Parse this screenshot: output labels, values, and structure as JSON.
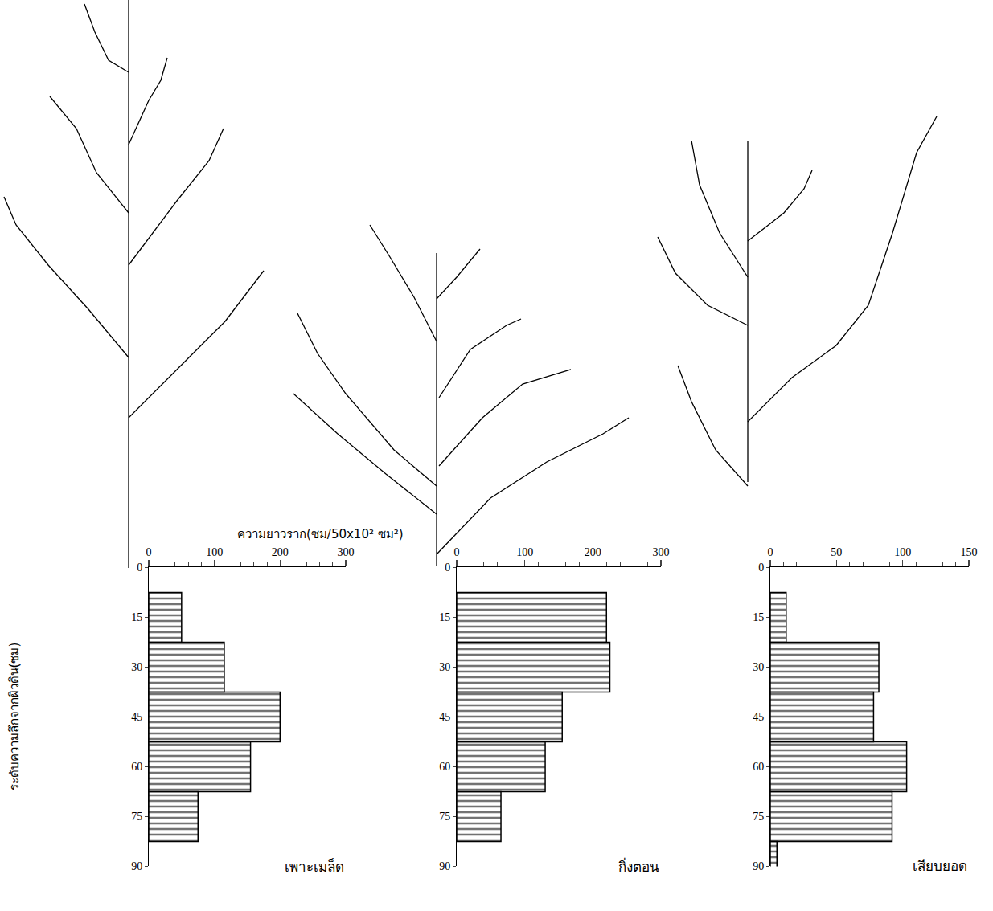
{
  "chart_data": {
    "type": "bar",
    "orientation": "horizontal",
    "x_label": "ความยาวราก(ซม/50x10² ซม²)",
    "y_label": "ระดับความลึกจากผิวดิน(ซม)",
    "ylim": [
      0,
      90
    ],
    "yticks": [
      0,
      15,
      30,
      45,
      60,
      75,
      90
    ],
    "color": "#d4d4d4",
    "grid": false,
    "panels": [
      {
        "title": "เพาะเมล็ด",
        "y": [
          15,
          30,
          45,
          60,
          75
        ],
        "values": [
          50,
          115,
          200,
          155,
          75
        ],
        "xlim": [
          0,
          300
        ],
        "xticks": [
          0,
          100,
          200,
          300
        ]
      },
      {
        "title": "กิ่งตอน",
        "y": [
          15,
          30,
          45,
          60,
          75
        ],
        "values": [
          220,
          225,
          155,
          130,
          65
        ],
        "xlim": [
          0,
          300
        ],
        "xticks": [
          0,
          100,
          200,
          300
        ]
      },
      {
        "title": "เสียบยอด",
        "y": [
          15,
          30,
          45,
          60,
          75,
          90
        ],
        "values": [
          12,
          82,
          78,
          103,
          92,
          5
        ],
        "xlim": [
          0,
          150
        ],
        "xticks": [
          0,
          50,
          100,
          150
        ]
      }
    ]
  }
}
